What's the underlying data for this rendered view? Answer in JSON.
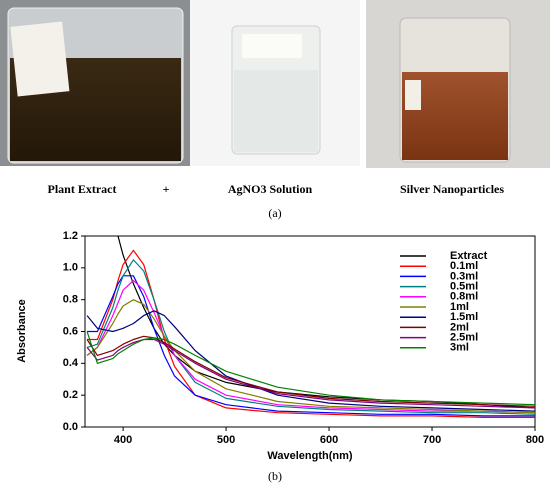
{
  "figure_a": {
    "captions": [
      "Plant Extract",
      "+",
      "AgNO3  Solution",
      "Silver Nanoparticles"
    ],
    "label": "(a)"
  },
  "chart_data": {
    "type": "line",
    "ylabel": "Absorbance",
    "xlabel": "Wavelength(nm)",
    "x": [
      365,
      375,
      390,
      395,
      400,
      410,
      420,
      430,
      440,
      450,
      470,
      500,
      550,
      600,
      650,
      700,
      750,
      800
    ],
    "xlim": [
      363,
      800
    ],
    "ylim": [
      0,
      1.2
    ],
    "xticks": [
      400,
      500,
      600,
      700,
      800
    ],
    "yticks": [
      {
        "value": 0,
        "label": "0.0"
      },
      0.2,
      0.4,
      0.6,
      0.8,
      {
        "value": 1,
        "label": "1.0"
      },
      1.2
    ],
    "legend": "upper right",
    "series": [
      {
        "name": "Extract",
        "color": "#000000",
        "values": [
          null,
          null,
          null,
          1.2,
          1.08,
          0.9,
          0.75,
          0.62,
          0.52,
          0.45,
          0.35,
          0.28,
          0.22,
          0.19,
          0.17,
          0.16,
          0.14,
          0.12
        ]
      },
      {
        "name": "0.1ml",
        "color": "#ff0000",
        "values": [
          0.55,
          0.55,
          0.8,
          0.92,
          1.02,
          1.11,
          1.02,
          0.8,
          0.55,
          0.38,
          0.2,
          0.12,
          0.09,
          0.08,
          0.07,
          0.07,
          0.06,
          0.06
        ]
      },
      {
        "name": "0.3ml",
        "color": "#0000ff",
        "values": [
          0.6,
          0.6,
          0.82,
          0.9,
          0.95,
          0.95,
          0.82,
          0.62,
          0.45,
          0.32,
          0.2,
          0.14,
          0.1,
          0.09,
          0.08,
          0.08,
          0.07,
          0.07
        ]
      },
      {
        "name": "0.5ml",
        "color": "#008080",
        "values": [
          0.5,
          0.52,
          0.75,
          0.86,
          0.95,
          1.05,
          0.98,
          0.8,
          0.6,
          0.45,
          0.28,
          0.18,
          0.13,
          0.11,
          0.1,
          0.09,
          0.09,
          0.08
        ]
      },
      {
        "name": "0.8ml",
        "color": "#ff00ff",
        "values": [
          0.45,
          0.5,
          0.7,
          0.78,
          0.86,
          0.92,
          0.86,
          0.72,
          0.57,
          0.45,
          0.3,
          0.2,
          0.14,
          0.12,
          0.11,
          0.1,
          0.1,
          0.09
        ]
      },
      {
        "name": "1ml",
        "color": "#808000",
        "values": [
          0.45,
          0.5,
          0.65,
          0.71,
          0.76,
          0.8,
          0.77,
          0.68,
          0.57,
          0.48,
          0.35,
          0.24,
          0.16,
          0.13,
          0.12,
          0.11,
          0.1,
          0.09
        ]
      },
      {
        "name": "1.5ml",
        "color": "#000080",
        "values": [
          0.7,
          0.62,
          0.6,
          0.61,
          0.62,
          0.65,
          0.7,
          0.73,
          0.7,
          0.63,
          0.48,
          0.32,
          0.2,
          0.15,
          0.13,
          0.12,
          0.11,
          0.1
        ]
      },
      {
        "name": "2ml",
        "color": "#800000",
        "values": [
          0.55,
          0.45,
          0.48,
          0.5,
          0.52,
          0.55,
          0.57,
          0.56,
          0.53,
          0.49,
          0.41,
          0.31,
          0.22,
          0.18,
          0.16,
          0.15,
          0.14,
          0.13
        ]
      },
      {
        "name": "2.5ml",
        "color": "#800080",
        "values": [
          0.5,
          0.42,
          0.45,
          0.48,
          0.5,
          0.53,
          0.55,
          0.55,
          0.52,
          0.48,
          0.4,
          0.3,
          0.21,
          0.17,
          0.15,
          0.14,
          0.13,
          0.12
        ]
      },
      {
        "name": "3ml",
        "color": "#008000",
        "values": [
          0.6,
          0.4,
          0.43,
          0.46,
          0.48,
          0.52,
          0.55,
          0.56,
          0.55,
          0.52,
          0.45,
          0.35,
          0.25,
          0.2,
          0.17,
          0.16,
          0.15,
          0.14
        ]
      }
    ]
  },
  "caption_b": "(b)"
}
